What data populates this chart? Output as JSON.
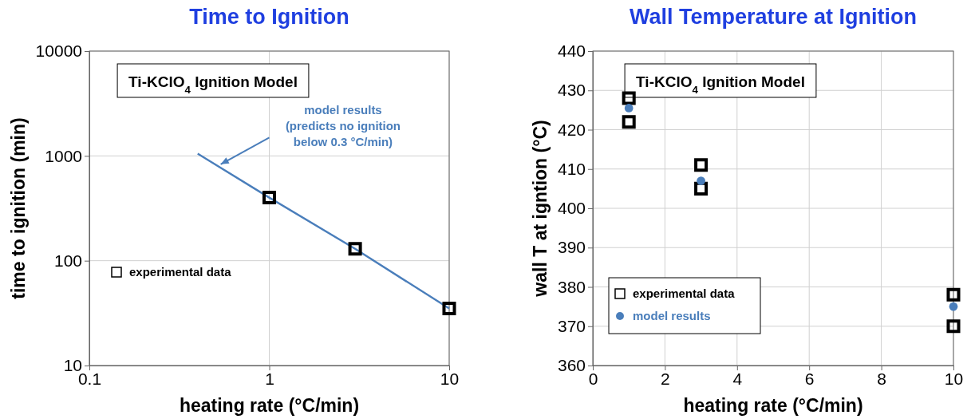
{
  "chart_data": [
    {
      "type": "scatter",
      "title": "Time to Ignition",
      "subtitle": "Ti-KClO$_{4}$ Ignition Model",
      "xlabel": "heating rate (°C/min)",
      "ylabel": "time to ignition (min)",
      "log": "xy",
      "xlim": [
        0.1,
        10
      ],
      "xticks": [
        0.1,
        1,
        10
      ],
      "ylim": [
        10,
        10000
      ],
      "yticks": [
        10,
        100,
        1000,
        10000
      ],
      "grid": true,
      "legend": "left",
      "series": [
        {
          "type": "line",
          "color": "#4a7ebb",
          "x": [
            0.4,
            1,
            3,
            10
          ],
          "values": [
            1050,
            400,
            130,
            35
          ],
          "marker": "none",
          "line_style": "solid"
        },
        {
          "name": "experimental data",
          "color": "#000000",
          "x": [
            1,
            3,
            10
          ],
          "values": [
            400,
            130,
            35
          ],
          "marker": "square"
        }
      ],
      "annotations": [
        "model results\n(predicts no ignition\nbelow 0.3 °C/min)"
      ]
    },
    {
      "type": "scatter",
      "title": "Wall Temperature at Ignition",
      "subtitle": "Ti-KClO$_{4}$ Ignition Model",
      "xlabel": "heating rate (°C/min)",
      "ylabel": "wall T at igntion (°C)",
      "xlim": [
        0,
        10
      ],
      "xticks": [
        0,
        2,
        4,
        6,
        8,
        10
      ],
      "ylim": [
        360,
        440
      ],
      "yticks": [
        360,
        370,
        380,
        390,
        400,
        410,
        420,
        430,
        440
      ],
      "grid": true,
      "legend": "bottom left",
      "series": [
        {
          "name": "experimental data",
          "color": "#000000",
          "x": [
            1,
            1,
            3,
            3,
            10,
            10
          ],
          "values": [
            428,
            422,
            411,
            405,
            378,
            370
          ],
          "marker": "square"
        },
        {
          "name": "model results",
          "color": "#4a7ebb",
          "x": [
            1,
            3,
            10
          ],
          "values": [
            425.5,
            407,
            375
          ],
          "marker": "circle"
        }
      ]
    }
  ]
}
